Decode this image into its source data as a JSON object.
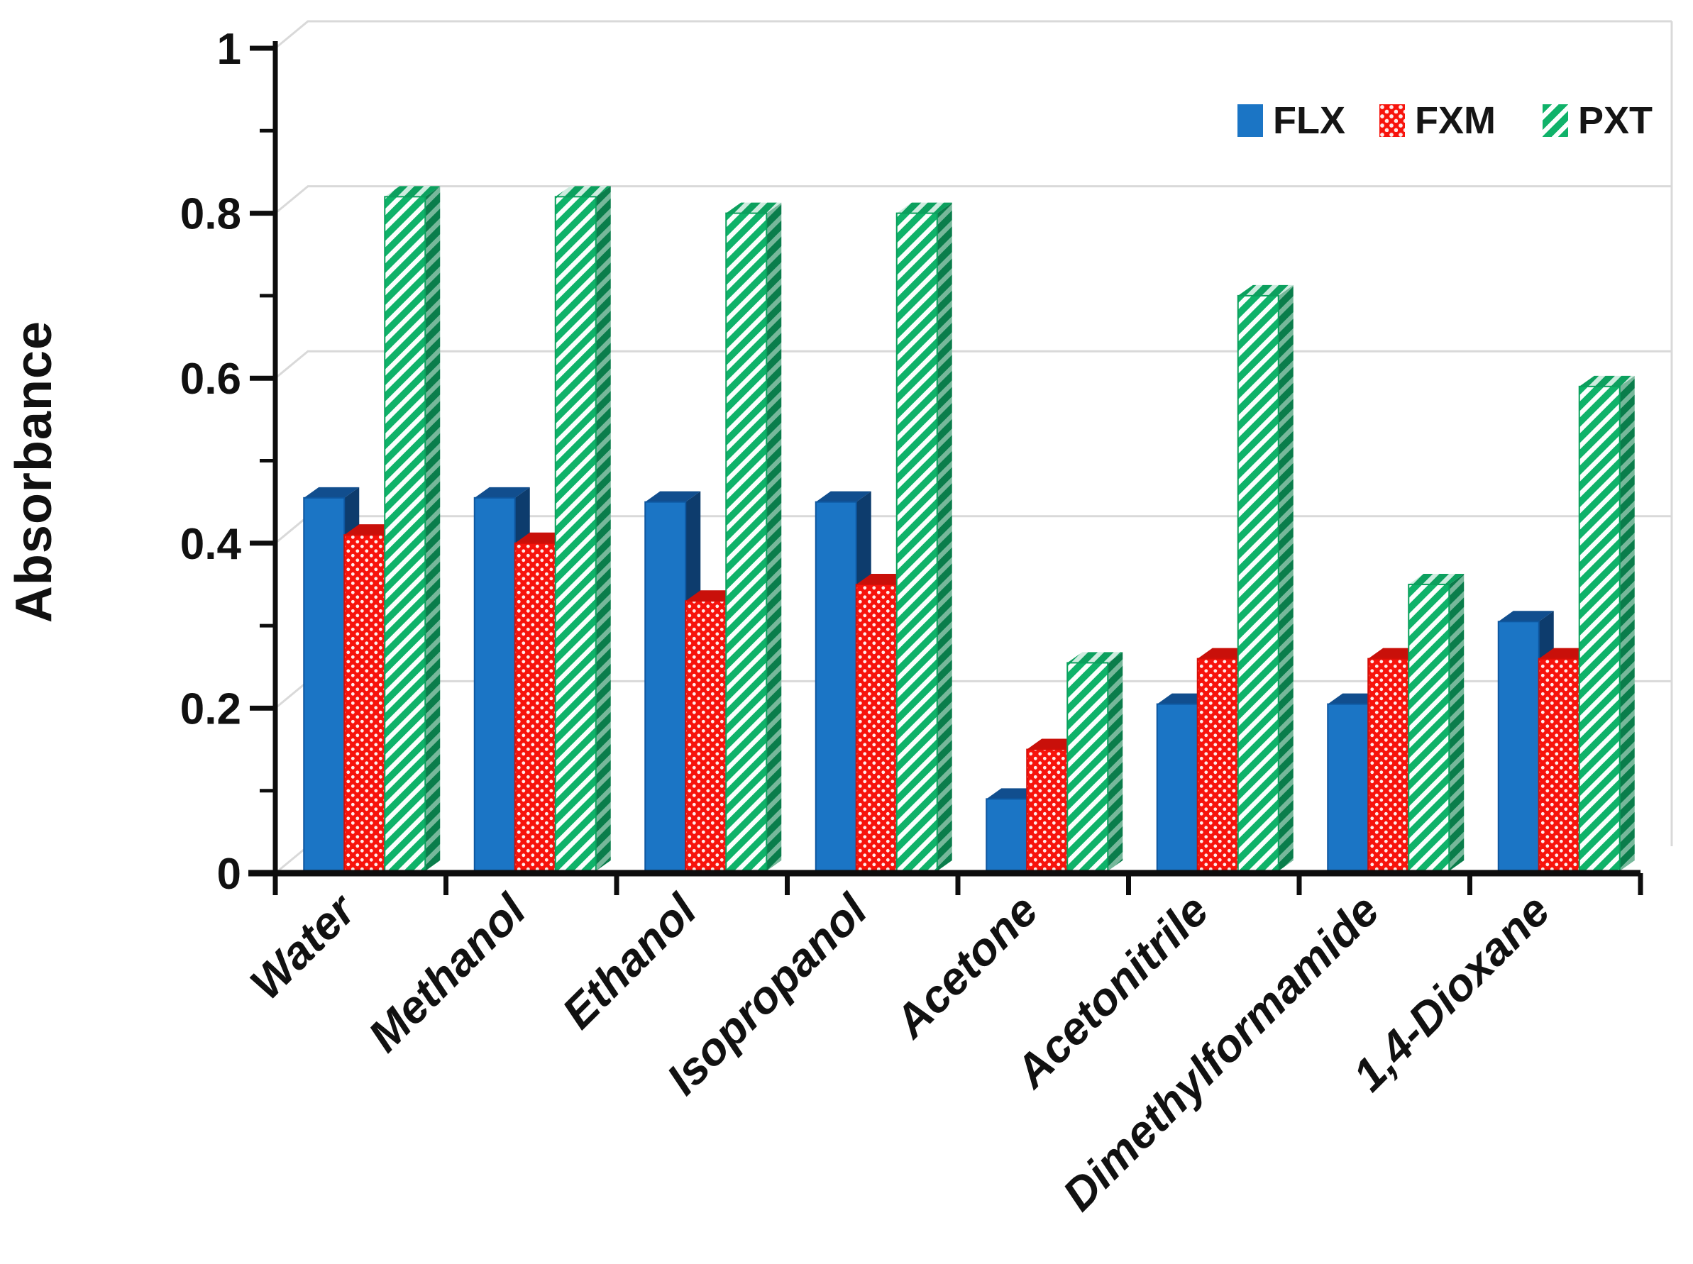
{
  "chart_data": {
    "type": "bar",
    "title": "",
    "xlabel": "",
    "ylabel": "Absorbance",
    "ylim": [
      0,
      1
    ],
    "yticks": [
      0,
      0.2,
      0.4,
      0.6,
      0.8,
      1
    ],
    "ytick_labels": [
      "0",
      "0.2",
      "0.4",
      "0.6",
      "0.8",
      "1"
    ],
    "minor_yticks": [
      0.1,
      0.3,
      0.5,
      0.7,
      0.9
    ],
    "grid": "horizontal major gridlines, light gray, pseudo-3D wall offset",
    "legend_position": "top-right",
    "style": "pseudo-3D clustered columns with beveled tops",
    "categories": [
      "Water",
      "Methanol",
      "Ethanol",
      "Isopropanol",
      "Acetone",
      "Acetonitrile",
      "Dimethylformamide",
      "1,4-Dioxane"
    ],
    "series": [
      {
        "name": "FLX",
        "color": "#1B75C5",
        "pattern": "solid",
        "values": [
          0.455,
          0.455,
          0.45,
          0.45,
          0.09,
          0.205,
          0.205,
          0.305
        ]
      },
      {
        "name": "FXM",
        "color": "#F7130C",
        "pattern": "white-dot-grid",
        "values": [
          0.41,
          0.4,
          0.33,
          0.35,
          0.15,
          0.26,
          0.26,
          0.26
        ]
      },
      {
        "name": "PXT",
        "color": "#0FB269",
        "pattern": "white-diagonal-stripes",
        "values": [
          0.82,
          0.82,
          0.8,
          0.8,
          0.255,
          0.7,
          0.35,
          0.59
        ]
      }
    ],
    "colors": {
      "background": "#FFFFFF",
      "axis": "#0D0D0D",
      "gridline": "#D9D9D9",
      "flx_top": "#114E8E",
      "flx_side": "#0D3C6D",
      "fxm_top": "#C9100A",
      "fxm_side": "#9C0C06",
      "pxt_top": "#0CA05E",
      "pxt_side": "#0A7D4B"
    }
  }
}
